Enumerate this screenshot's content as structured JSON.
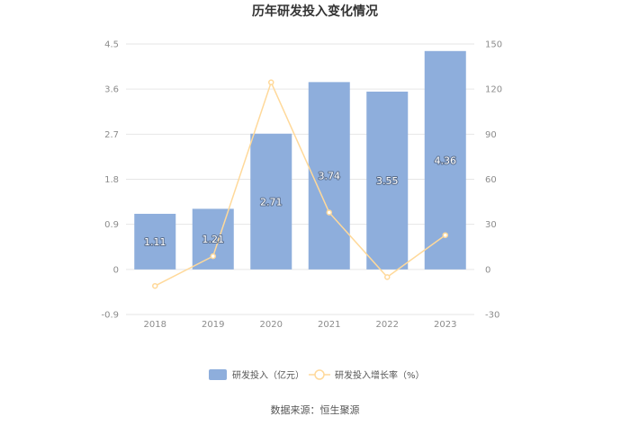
{
  "chart_data": {
    "type": "bar",
    "title": "历年研发投入变化情况",
    "categories": [
      "2018",
      "2019",
      "2020",
      "2021",
      "2022",
      "2023"
    ],
    "series": [
      {
        "name": "研发投入（亿元）",
        "kind": "bar",
        "axis": "left",
        "color": "#8eaedc",
        "values": [
          1.11,
          1.21,
          2.71,
          3.74,
          3.55,
          4.36
        ],
        "labels": [
          "1.11",
          "1.21",
          "2.71",
          "3.74",
          "3.55",
          "4.36"
        ]
      },
      {
        "name": "研发投入增长率（%）",
        "kind": "line",
        "axis": "right",
        "color": "#ffd99a",
        "values": [
          -11,
          8.8,
          124.5,
          37.9,
          -5.1,
          22.8
        ]
      }
    ],
    "y_left": {
      "ylim": [
        -0.9,
        4.5
      ],
      "ticks": [
        "4.5",
        "3.6",
        "2.7",
        "1.8",
        "0.9",
        "0",
        "-0.9"
      ]
    },
    "y_right": {
      "ylim": [
        -30,
        150
      ],
      "ticks": [
        "150",
        "120",
        "90",
        "60",
        "30",
        "0",
        "-30"
      ]
    },
    "grid": true,
    "legend_position": "bottom"
  },
  "source": "数据来源：恒生聚源"
}
